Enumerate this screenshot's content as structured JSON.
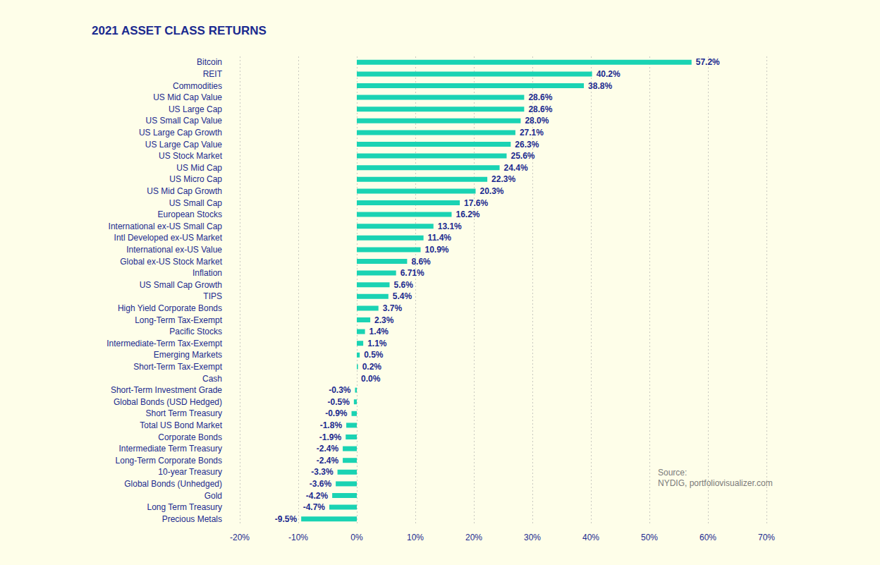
{
  "chart_data": {
    "type": "bar",
    "orientation": "horizontal",
    "title": "2021 ASSET CLASS RETURNS",
    "annotations": [
      "Source:",
      "NYDIG, portfoliovisualizer.com"
    ],
    "categories": [
      "Bitcoin",
      "REIT",
      "Commodities",
      "US Mid Cap Value",
      "US Large Cap",
      "US Small Cap Value",
      "US Large Cap Growth",
      "US Large Cap Value",
      "US Stock Market",
      "US Mid Cap",
      "US Micro Cap",
      "US Mid Cap Growth",
      "US Small Cap",
      "European Stocks",
      "International ex-US Small Cap",
      "Intl Developed ex-US Market",
      "International ex-US Value",
      "Global ex-US Stock Market",
      "Inflation",
      "US Small Cap Growth",
      "TIPS",
      "High Yield Corporate Bonds",
      "Long-Term Tax-Exempt",
      "Pacific Stocks",
      "Intermediate-Term Tax-Exempt",
      "Emerging Markets",
      "Short-Term Tax-Exempt",
      "Cash",
      "Short-Term Investment Grade",
      "Global Bonds (USD Hedged)",
      "Short Term Treasury",
      "Total US Bond Market",
      "Corporate Bonds",
      "Intermediate Term Treasury",
      "Long-Term Corporate Bonds",
      "10-year Treasury",
      "Global Bonds (Unhedged)",
      "Gold",
      "Long Term Treasury",
      "Precious Metals"
    ],
    "values": [
      57.2,
      40.2,
      38.8,
      28.6,
      28.6,
      28.0,
      27.1,
      26.3,
      25.6,
      24.4,
      22.3,
      20.3,
      17.6,
      16.2,
      13.1,
      11.4,
      10.9,
      8.6,
      6.71,
      5.6,
      5.4,
      3.7,
      2.3,
      1.4,
      1.1,
      0.5,
      0.2,
      0.0,
      -0.3,
      -0.5,
      -0.9,
      -1.8,
      -1.9,
      -2.4,
      -2.4,
      -3.3,
      -3.6,
      -4.2,
      -4.7,
      -9.5
    ],
    "value_labels": [
      "57.2%",
      "40.2%",
      "38.8%",
      "28.6%",
      "28.6%",
      "28.0%",
      "27.1%",
      "26.3%",
      "25.6%",
      "24.4%",
      "22.3%",
      "20.3%",
      "17.6%",
      "16.2%",
      "13.1%",
      "11.4%",
      "10.9%",
      "8.6%",
      "6.71%",
      "5.6%",
      "5.4%",
      "3.7%",
      "2.3%",
      "1.4%",
      "1.1%",
      "0.5%",
      "0.2%",
      "0.0%",
      "-0.3%",
      "-0.5%",
      "-0.9%",
      "-1.8%",
      "-1.9%",
      "-2.4%",
      "-2.4%",
      "-3.3%",
      "-3.6%",
      "-4.2%",
      "-4.7%",
      "-9.5%"
    ],
    "color": "#1ad3b3",
    "xlim": [
      -20,
      70
    ],
    "xticks": [
      {
        "value": -20,
        "label": "-20%"
      },
      {
        "value": -10,
        "label": "-10%"
      },
      {
        "value": 0,
        "label": "0%"
      },
      {
        "value": 10,
        "label": "10%"
      },
      {
        "value": 20,
        "label": "20%"
      },
      {
        "value": 30,
        "label": "30%"
      },
      {
        "value": 40,
        "label": "40%"
      },
      {
        "value": 50,
        "label": "50%"
      },
      {
        "value": 60,
        "label": "60%"
      },
      {
        "value": 70,
        "label": "70%"
      }
    ],
    "grid": true,
    "data_labels": true
  }
}
